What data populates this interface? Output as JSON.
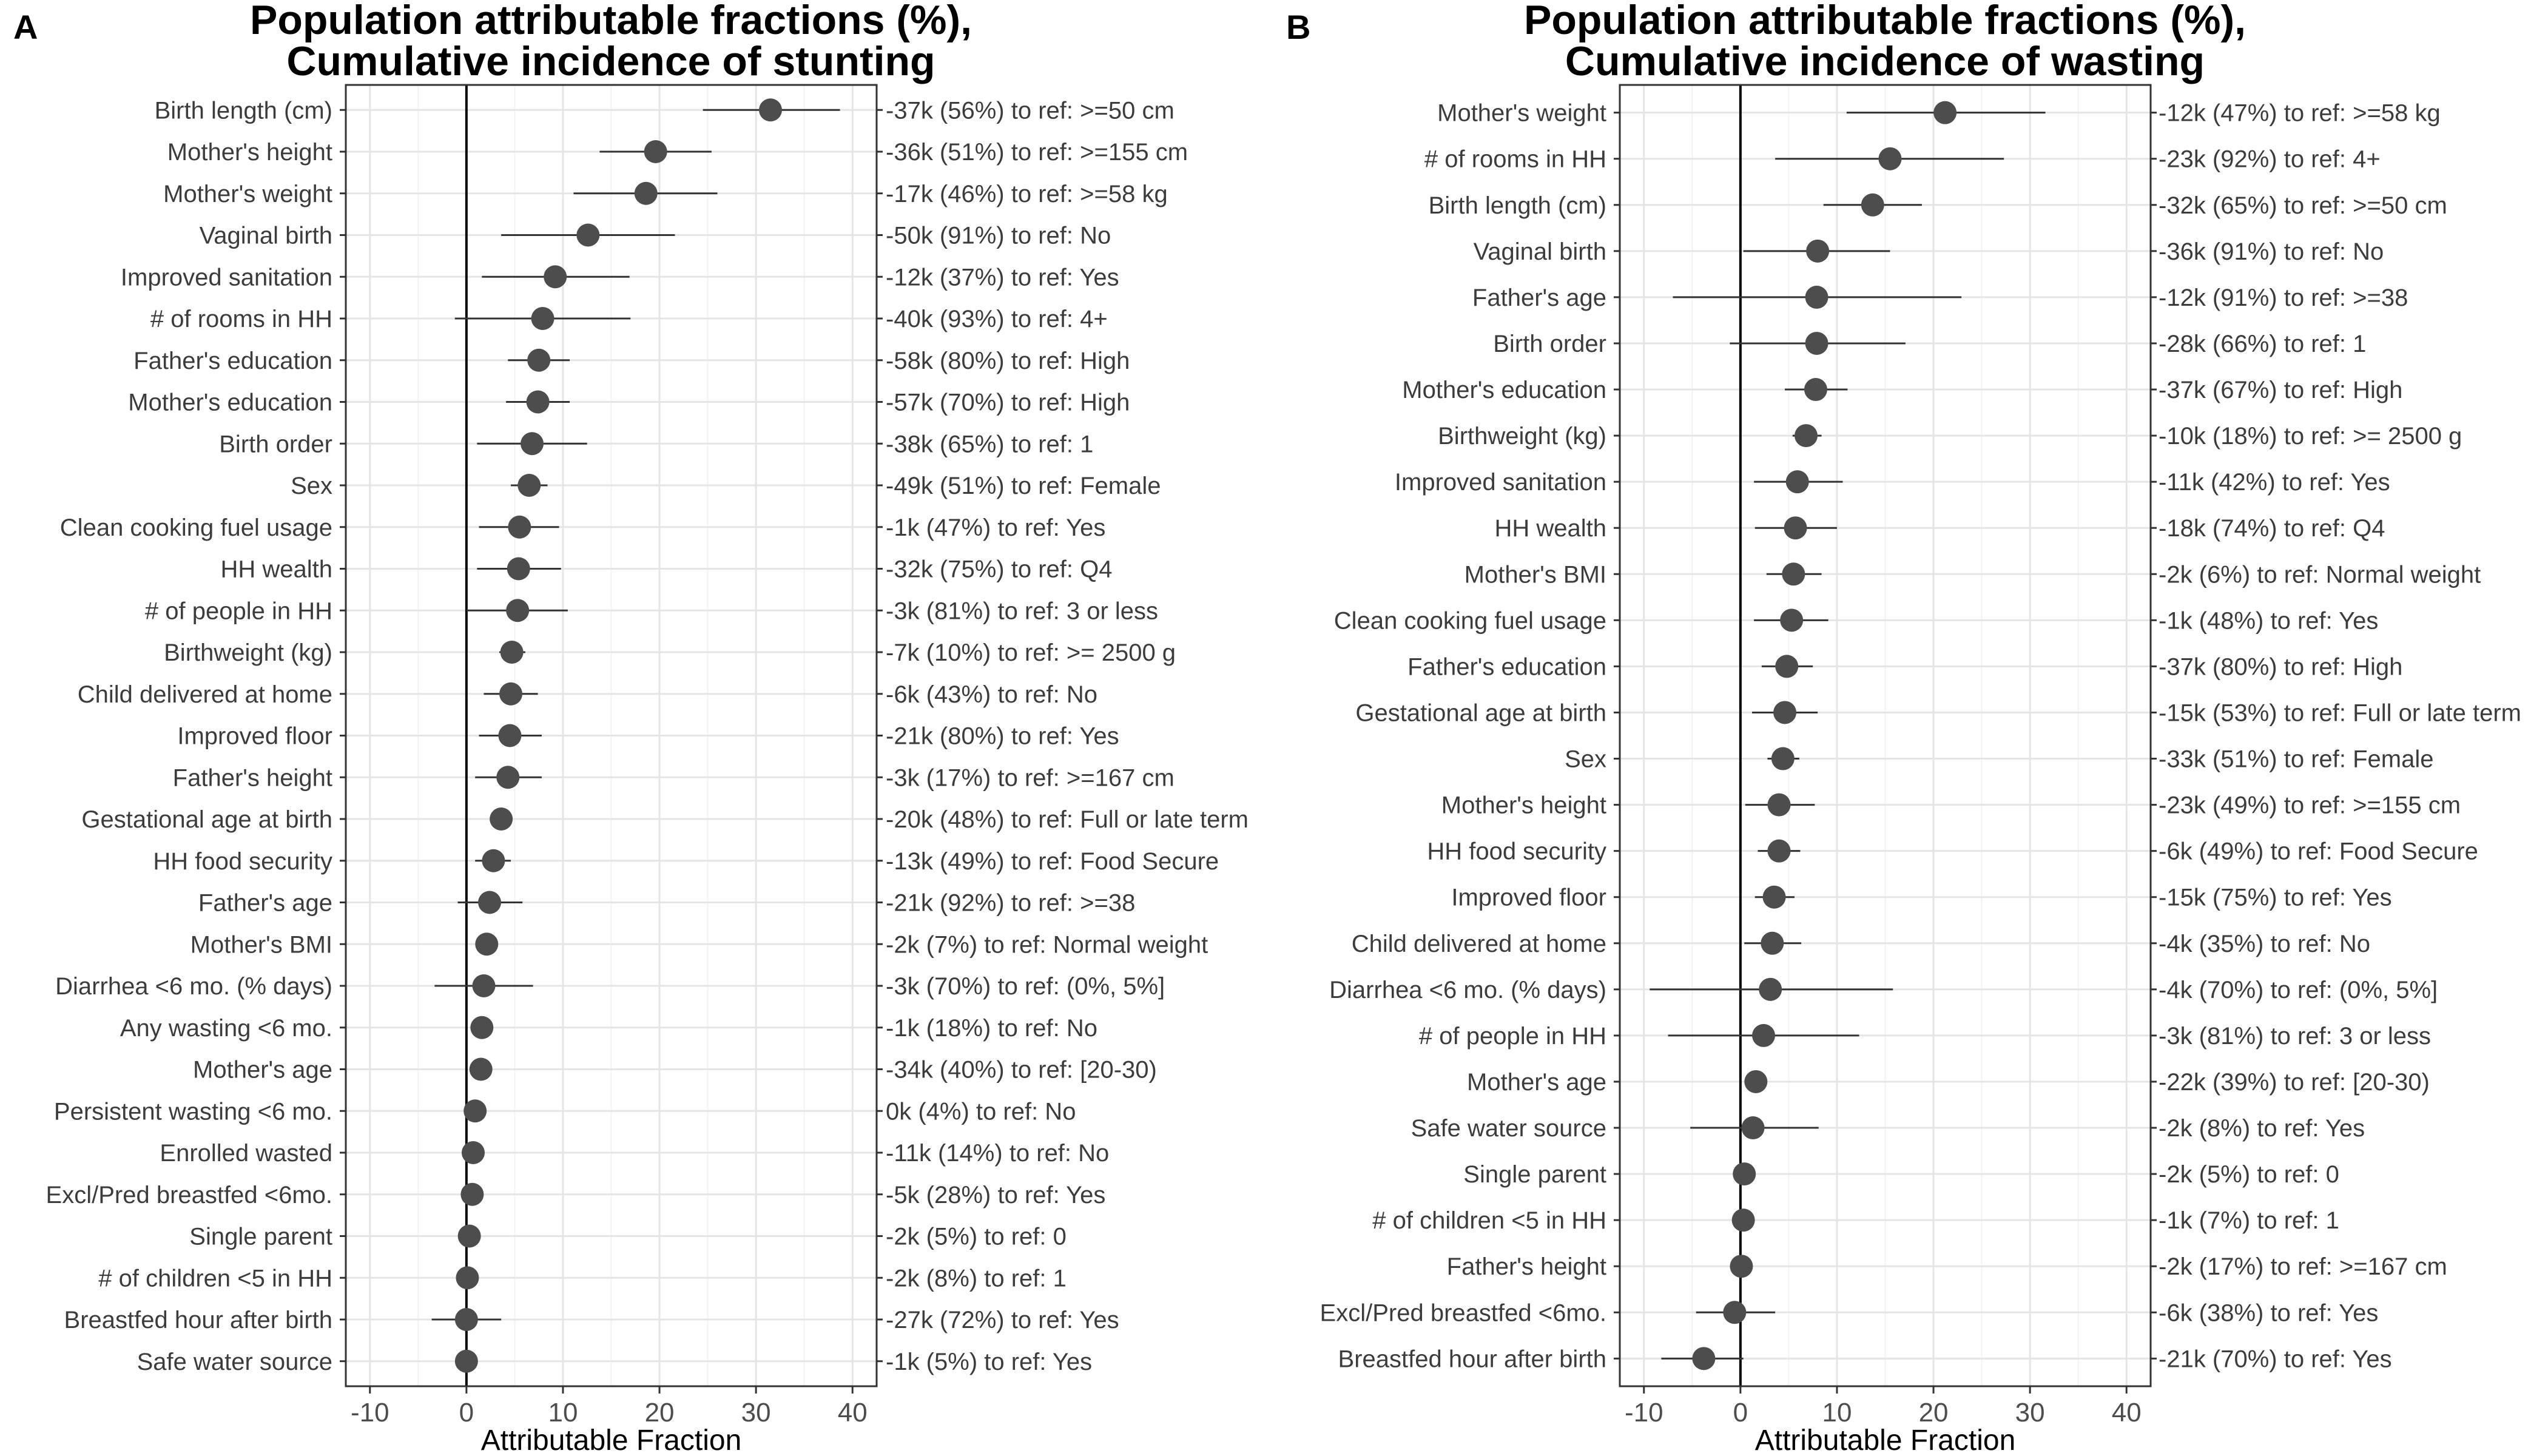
{
  "chart_data": [
    {
      "type": "scatter",
      "panel": "A",
      "title": "Population attributable fractions (%),",
      "subtitle": "Cumulative incidence of stunting",
      "xlabel": "Attributable Fraction",
      "xlim": [
        -12.5,
        42.5
      ],
      "xticks": [
        -10,
        0,
        10,
        20,
        30,
        40
      ],
      "reference_line": 0,
      "grid": true,
      "points": [
        {
          "label": "Birth length (cm)",
          "value": 31.5,
          "lower": 24.5,
          "upper": 38.7,
          "annotation": "-37k (56%) to ref: >=50 cm"
        },
        {
          "label": "Mother's height",
          "value": 19.6,
          "lower": 13.8,
          "upper": 25.4,
          "annotation": "-36k (51%) to ref: >=155 cm"
        },
        {
          "label": "Mother's weight",
          "value": 18.6,
          "lower": 11.1,
          "upper": 26.0,
          "annotation": "-17k (46%) to ref: >=58 kg"
        },
        {
          "label": "Vaginal birth",
          "value": 12.6,
          "lower": 3.6,
          "upper": 21.6,
          "annotation": "-50k (91%) to ref: No"
        },
        {
          "label": "Improved sanitation",
          "value": 9.2,
          "lower": 1.6,
          "upper": 16.9,
          "annotation": "-12k (37%) to ref: Yes"
        },
        {
          "label": "# of rooms in HH",
          "value": 7.9,
          "lower": -1.2,
          "upper": 17.0,
          "annotation": "-40k (93%) to ref: 4+"
        },
        {
          "label": "Father's education",
          "value": 7.5,
          "lower": 4.3,
          "upper": 10.7,
          "annotation": "-58k (80%) to ref: High"
        },
        {
          "label": "Mother's education",
          "value": 7.4,
          "lower": 4.1,
          "upper": 10.7,
          "annotation": "-57k (70%) to ref: High"
        },
        {
          "label": "Birth order",
          "value": 6.8,
          "lower": 1.1,
          "upper": 12.5,
          "annotation": "-38k (65%) to ref: 1"
        },
        {
          "label": "Sex",
          "value": 6.5,
          "lower": 4.6,
          "upper": 8.4,
          "annotation": "-49k (51%) to ref: Female"
        },
        {
          "label": "Clean cooking fuel usage",
          "value": 5.5,
          "lower": 1.3,
          "upper": 9.6,
          "annotation": "-1k (47%) to ref: Yes"
        },
        {
          "label": "HH wealth",
          "value": 5.4,
          "lower": 1.1,
          "upper": 9.8,
          "annotation": "-32k (75%) to ref: Q4"
        },
        {
          "label": "# of people in HH",
          "value": 5.3,
          "lower": 0.0,
          "upper": 10.5,
          "annotation": "-3k (81%) to ref: 3 or less"
        },
        {
          "label": "Birthweight (kg)",
          "value": 4.7,
          "lower": 3.4,
          "upper": 6.1,
          "annotation": "-7k (10%) to ref: >= 2500 g"
        },
        {
          "label": "Child delivered at home",
          "value": 4.6,
          "lower": 1.8,
          "upper": 7.4,
          "annotation": "-6k (43%) to ref: No"
        },
        {
          "label": "Improved floor",
          "value": 4.5,
          "lower": 1.3,
          "upper": 7.8,
          "annotation": "-21k (80%) to ref: Yes"
        },
        {
          "label": "Father's height",
          "value": 4.3,
          "lower": 0.9,
          "upper": 7.8,
          "annotation": "-3k (17%) to ref: >=167 cm"
        },
        {
          "label": "Gestational age at birth",
          "value": 3.6,
          "lower": 2.6,
          "upper": 4.6,
          "annotation": "-20k (48%) to ref: Full or late term"
        },
        {
          "label": "HH food security",
          "value": 2.8,
          "lower": 0.9,
          "upper": 4.6,
          "annotation": "-13k (49%) to ref: Food Secure"
        },
        {
          "label": "Father's age",
          "value": 2.4,
          "lower": -0.9,
          "upper": 5.8,
          "annotation": "-21k (92%) to ref: >=38"
        },
        {
          "label": "Mother's BMI",
          "value": 2.1,
          "lower": 1.3,
          "upper": 3.0,
          "annotation": "-2k (7%) to ref: Normal weight"
        },
        {
          "label": "Diarrhea <6 mo. (% days)",
          "value": 1.8,
          "lower": -3.3,
          "upper": 6.9,
          "annotation": "-3k (70%) to ref: (0%, 5%]"
        },
        {
          "label": "Any wasting  <6 mo.",
          "value": 1.6,
          "lower": 0.9,
          "upper": 2.3,
          "annotation": "-1k (18%) to ref: No"
        },
        {
          "label": "Mother's age",
          "value": 1.5,
          "lower": 0.7,
          "upper": 2.3,
          "annotation": "-34k (40%) to ref: [20-30)"
        },
        {
          "label": "Persistent wasting  <6 mo.",
          "value": 0.9,
          "lower": 0.4,
          "upper": 1.4,
          "annotation": "0k (4%) to ref: No"
        },
        {
          "label": "Enrolled wasted",
          "value": 0.7,
          "lower": 0.2,
          "upper": 1.2,
          "annotation": "-11k (14%) to ref: No"
        },
        {
          "label": "Excl/Pred breastfed <6mo.",
          "value": 0.6,
          "lower": -0.3,
          "upper": 1.5,
          "annotation": "-5k (28%) to ref: Yes"
        },
        {
          "label": "Single parent",
          "value": 0.3,
          "lower": -0.2,
          "upper": 0.8,
          "annotation": "-2k (5%) to ref: 0"
        },
        {
          "label": "# of children <5 in HH",
          "value": 0.1,
          "lower": -0.5,
          "upper": 0.7,
          "annotation": "-2k (8%) to ref: 1"
        },
        {
          "label": "Breastfed hour after birth",
          "value": 0.0,
          "lower": -3.6,
          "upper": 3.6,
          "annotation": "-27k (72%) to ref: Yes"
        },
        {
          "label": "Safe water source",
          "value": 0.0,
          "lower": -0.6,
          "upper": 0.6,
          "annotation": "-1k (5%) to ref: Yes"
        }
      ]
    },
    {
      "type": "scatter",
      "panel": "B",
      "title": "Population attributable fractions (%),",
      "subtitle": "Cumulative incidence of wasting",
      "xlabel": "Attributable Fraction",
      "xlim": [
        -12.5,
        42.5
      ],
      "xticks": [
        -10,
        0,
        10,
        20,
        30,
        40
      ],
      "reference_line": 0,
      "grid": true,
      "points": [
        {
          "label": "Mother's weight",
          "value": 21.2,
          "lower": 11.0,
          "upper": 31.6,
          "annotation": "-12k (47%) to ref: >=58 kg"
        },
        {
          "label": "# of rooms in HH",
          "value": 15.5,
          "lower": 3.6,
          "upper": 27.3,
          "annotation": "-23k (92%) to ref: 4+"
        },
        {
          "label": "Birth length (cm)",
          "value": 13.7,
          "lower": 8.6,
          "upper": 18.8,
          "annotation": "-32k (65%) to ref: >=50 cm"
        },
        {
          "label": "Vaginal birth",
          "value": 8.0,
          "lower": 0.3,
          "upper": 15.5,
          "annotation": "-36k (91%) to ref: No"
        },
        {
          "label": "Father's age",
          "value": 7.9,
          "lower": -7.0,
          "upper": 22.9,
          "annotation": "-12k (91%) to ref: >=38"
        },
        {
          "label": "Birth order",
          "value": 7.9,
          "lower": -1.1,
          "upper": 17.1,
          "annotation": "-28k (66%) to ref: 1"
        },
        {
          "label": "Mother's education",
          "value": 7.8,
          "lower": 4.6,
          "upper": 11.1,
          "annotation": "-37k (67%) to ref: High"
        },
        {
          "label": "Birthweight (kg)",
          "value": 6.8,
          "lower": 5.4,
          "upper": 8.4,
          "annotation": "-10k (18%) to ref: >= 2500 g"
        },
        {
          "label": "Improved sanitation",
          "value": 5.9,
          "lower": 1.4,
          "upper": 10.6,
          "annotation": "-11k (42%) to ref: Yes"
        },
        {
          "label": "HH wealth",
          "value": 5.7,
          "lower": 1.5,
          "upper": 10.0,
          "annotation": "-18k (74%) to ref: Q4"
        },
        {
          "label": "Mother's BMI",
          "value": 5.5,
          "lower": 2.7,
          "upper": 8.4,
          "annotation": "-2k (6%) to ref: Normal weight"
        },
        {
          "label": "Clean cooking fuel usage",
          "value": 5.3,
          "lower": 1.4,
          "upper": 9.1,
          "annotation": "-1k (48%) to ref: Yes"
        },
        {
          "label": "Father's education",
          "value": 4.8,
          "lower": 2.2,
          "upper": 7.5,
          "annotation": "-37k (80%) to ref: High"
        },
        {
          "label": "Gestational age at birth",
          "value": 4.6,
          "lower": 1.2,
          "upper": 8.0,
          "annotation": "-15k (53%) to ref: Full or late term"
        },
        {
          "label": "Sex",
          "value": 4.4,
          "lower": 2.8,
          "upper": 6.1,
          "annotation": "-33k (51%) to ref: Female"
        },
        {
          "label": "Mother's height",
          "value": 4.0,
          "lower": 0.5,
          "upper": 7.7,
          "annotation": "-23k (49%) to ref: >=155 cm"
        },
        {
          "label": "HH food security",
          "value": 4.0,
          "lower": 1.8,
          "upper": 6.2,
          "annotation": "-6k (49%) to ref: Food Secure"
        },
        {
          "label": "Improved floor",
          "value": 3.5,
          "lower": 1.5,
          "upper": 5.6,
          "annotation": "-15k (75%) to ref: Yes"
        },
        {
          "label": "Child delivered at home",
          "value": 3.3,
          "lower": 0.4,
          "upper": 6.3,
          "annotation": "-4k (35%) to ref: No"
        },
        {
          "label": "Diarrhea <6 mo. (% days)",
          "value": 3.1,
          "lower": -9.4,
          "upper": 15.8,
          "annotation": "-4k (70%) to ref: (0%, 5%]"
        },
        {
          "label": "# of people in HH",
          "value": 2.4,
          "lower": -7.5,
          "upper": 12.3,
          "annotation": "-3k (81%) to ref: 3 or less"
        },
        {
          "label": "Mother's age",
          "value": 1.6,
          "lower": 0.7,
          "upper": 2.7,
          "annotation": "-22k (39%) to ref: [20-30)"
        },
        {
          "label": "Safe water source",
          "value": 1.3,
          "lower": -5.2,
          "upper": 8.1,
          "annotation": "-2k (8%) to ref: Yes"
        },
        {
          "label": "Single parent",
          "value": 0.4,
          "lower": -0.1,
          "upper": 0.9,
          "annotation": "-2k (5%) to ref: 0"
        },
        {
          "label": "# of children <5 in HH",
          "value": 0.3,
          "lower": -0.4,
          "upper": 1.0,
          "annotation": "-1k (7%) to ref: 1"
        },
        {
          "label": "Father's height",
          "value": 0.1,
          "lower": -0.5,
          "upper": 0.7,
          "annotation": "-2k (17%) to ref: >=167 cm"
        },
        {
          "label": "Excl/Pred breastfed <6mo.",
          "value": -0.6,
          "lower": -4.6,
          "upper": 3.6,
          "annotation": "-6k (38%) to ref: Yes"
        },
        {
          "label": "Breastfed hour after birth",
          "value": -3.8,
          "lower": -8.2,
          "upper": 0.3,
          "annotation": "-21k (70%) to ref: Yes"
        }
      ]
    }
  ],
  "colors": {
    "point": "#4d4d4d",
    "errorbar": "#333333",
    "grid_major": "#e5e5e5",
    "grid_minor": "#f2f2f2",
    "panel_border": "#333333",
    "zero_line": "#000000",
    "text": "#3c3c3c"
  }
}
